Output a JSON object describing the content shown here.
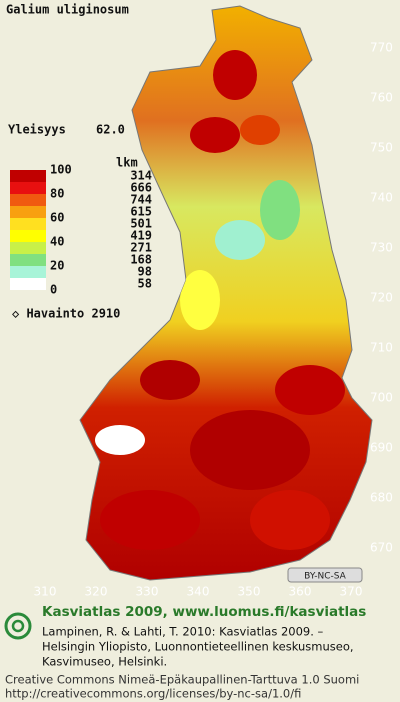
{
  "title": "Galium uliginosum",
  "frequency": {
    "label": "Yleisyys",
    "value": "62.0"
  },
  "legend": {
    "scale": [
      100,
      80,
      60,
      40,
      20,
      0
    ],
    "count_header": "lkm",
    "counts": [
      314,
      666,
      744,
      615,
      501,
      419,
      271,
      168,
      98,
      58
    ],
    "colors": [
      "#c00000",
      "#e81010",
      "#f05a10",
      "#f8a010",
      "#ffe020",
      "#ffff00",
      "#c8f048",
      "#80e080",
      "#a8f4d8",
      "#ffffff"
    ]
  },
  "observations": "◇ Havainto 2910",
  "map": {
    "y_labels": [
      770,
      760,
      750,
      740,
      730,
      720,
      710,
      700,
      690,
      680,
      670
    ],
    "x_labels": [
      310,
      320,
      330,
      340,
      350,
      360,
      370
    ],
    "badge": "BY-NC-SA"
  },
  "footer": {
    "atlas": "Kasviatlas 2009, www.luomus.fi/kasviatlas",
    "citation": [
      "Lampinen, R. & Lahti, T. 2010: Kasviatlas 2009. –",
      "Helsingin Yliopisto, Luonnontieteellinen keskusmuseo,",
      "Kasvimuseo, Helsinki."
    ],
    "license": [
      "Creative Commons Nimeä-Epäkaupallinen-Tarttuva 1.0 Suomi",
      "http://creativecommons.org/licenses/by-nc-sa/1.0/fi"
    ]
  }
}
